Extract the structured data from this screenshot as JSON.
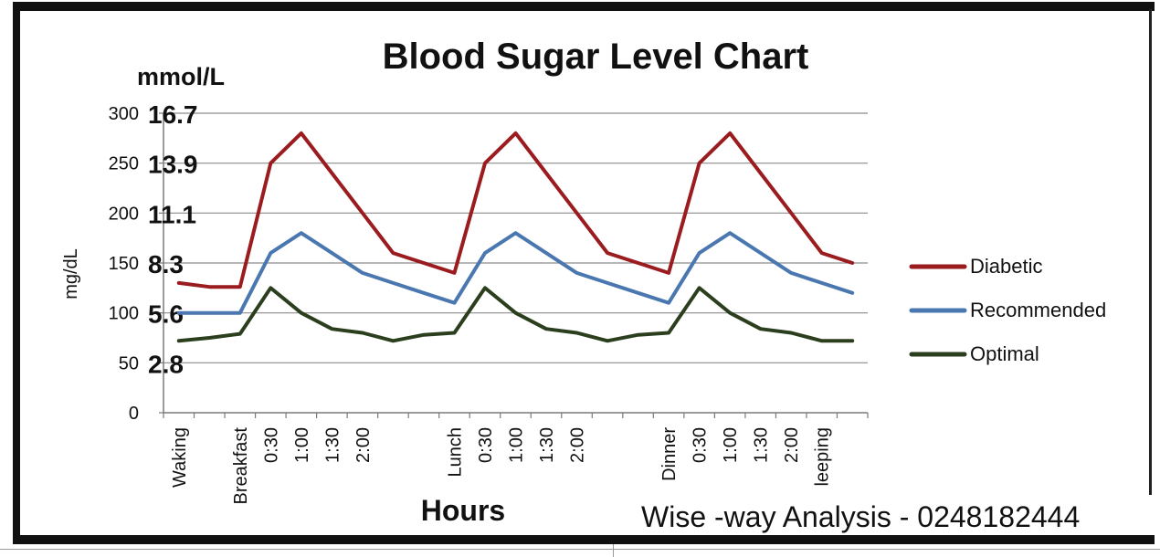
{
  "chart_data": {
    "type": "line",
    "title": "Blood Sugar Level Chart",
    "ylabel": "mg/dL",
    "secondary_axis_label": "mmol/L",
    "xlabel": "Hours",
    "ylim": [
      0,
      300
    ],
    "y_ticks": [
      0,
      50,
      100,
      150,
      200,
      250,
      300
    ],
    "mmol_ticks": [
      {
        "mgdl": 300,
        "label": "16.7"
      },
      {
        "mgdl": 250,
        "label": "13.9"
      },
      {
        "mgdl": 200,
        "label": "11.1"
      },
      {
        "mgdl": 150,
        "label": "8.3"
      },
      {
        "mgdl": 100,
        "label": "5.6"
      },
      {
        "mgdl": 50,
        "label": "2.8"
      }
    ],
    "categories": [
      "Waking",
      "",
      "Breakfast",
      "0:30",
      "1:00",
      "1:30",
      "2:00",
      "",
      "",
      "Lunch",
      "0:30",
      "1:00",
      "1:30",
      "2:00",
      "",
      "",
      "Dinner",
      "0:30",
      "1:00",
      "1:30",
      "2:00",
      "leeping",
      ""
    ],
    "grid": true,
    "legend_position": "right",
    "series": [
      {
        "name": "Diabetic",
        "color": "#9b1c1f",
        "values": [
          130,
          126,
          126,
          250,
          280,
          240,
          200,
          160,
          150,
          140,
          250,
          280,
          240,
          200,
          160,
          150,
          140,
          250,
          280,
          240,
          200,
          160,
          150
        ]
      },
      {
        "name": "Recommended",
        "color": "#4a77b0",
        "values": [
          100,
          100,
          100,
          160,
          180,
          160,
          140,
          130,
          120,
          110,
          160,
          180,
          160,
          140,
          130,
          120,
          110,
          160,
          180,
          160,
          140,
          130,
          120
        ]
      },
      {
        "name": "Optimal",
        "color": "#2b3f1f",
        "values": [
          72,
          75,
          79,
          125,
          100,
          84,
          80,
          72,
          78,
          80,
          125,
          100,
          84,
          80,
          72,
          78,
          80,
          125,
          100,
          84,
          80,
          72,
          72
        ]
      }
    ]
  },
  "footer": {
    "watermark": "Wise -way Analysis - 0248182444"
  }
}
